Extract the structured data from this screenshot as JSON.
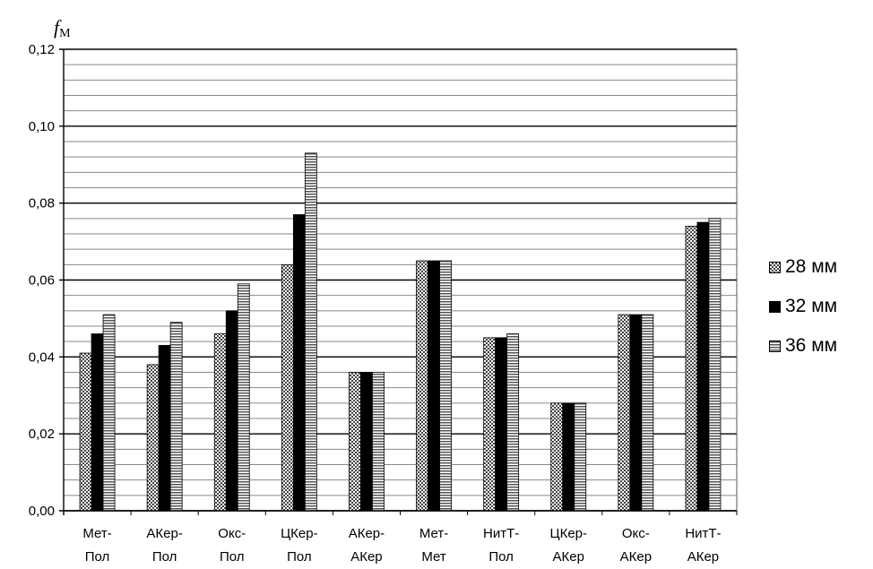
{
  "chart_data": {
    "type": "bar",
    "ylabel_main": "f",
    "ylabel_sub": "M",
    "ylim": [
      0,
      0.12
    ],
    "y_ticks": [
      "0,00",
      "0,02",
      "0,04",
      "0,06",
      "0,08",
      "0,10",
      "0,12"
    ],
    "grid": true,
    "legend_position": "right",
    "categories": [
      [
        "Мет-",
        "Пол"
      ],
      [
        "АКер-",
        "Пол"
      ],
      [
        "Окс-",
        "Пол"
      ],
      [
        "ЦКер-",
        "Пол"
      ],
      [
        "АКер-",
        "АКер"
      ],
      [
        "Мет-",
        "Мет"
      ],
      [
        "НитТ-",
        "Пол"
      ],
      [
        "ЦКер-",
        "АКер"
      ],
      [
        "Окс-",
        "АКер"
      ],
      [
        "НитТ-",
        "АКер"
      ]
    ],
    "series": [
      {
        "name": "28 мм",
        "pattern": "checker",
        "values": [
          0.041,
          0.038,
          0.046,
          0.064,
          0.036,
          0.065,
          0.045,
          0.028,
          0.051,
          0.074
        ]
      },
      {
        "name": "32 мм",
        "pattern": "solid",
        "values": [
          0.046,
          0.043,
          0.052,
          0.077,
          0.036,
          0.065,
          0.045,
          0.028,
          0.051,
          0.075
        ]
      },
      {
        "name": "36 мм",
        "pattern": "hstripe",
        "values": [
          0.051,
          0.049,
          0.059,
          0.093,
          0.036,
          0.065,
          0.046,
          0.028,
          0.051,
          0.076
        ]
      }
    ]
  }
}
